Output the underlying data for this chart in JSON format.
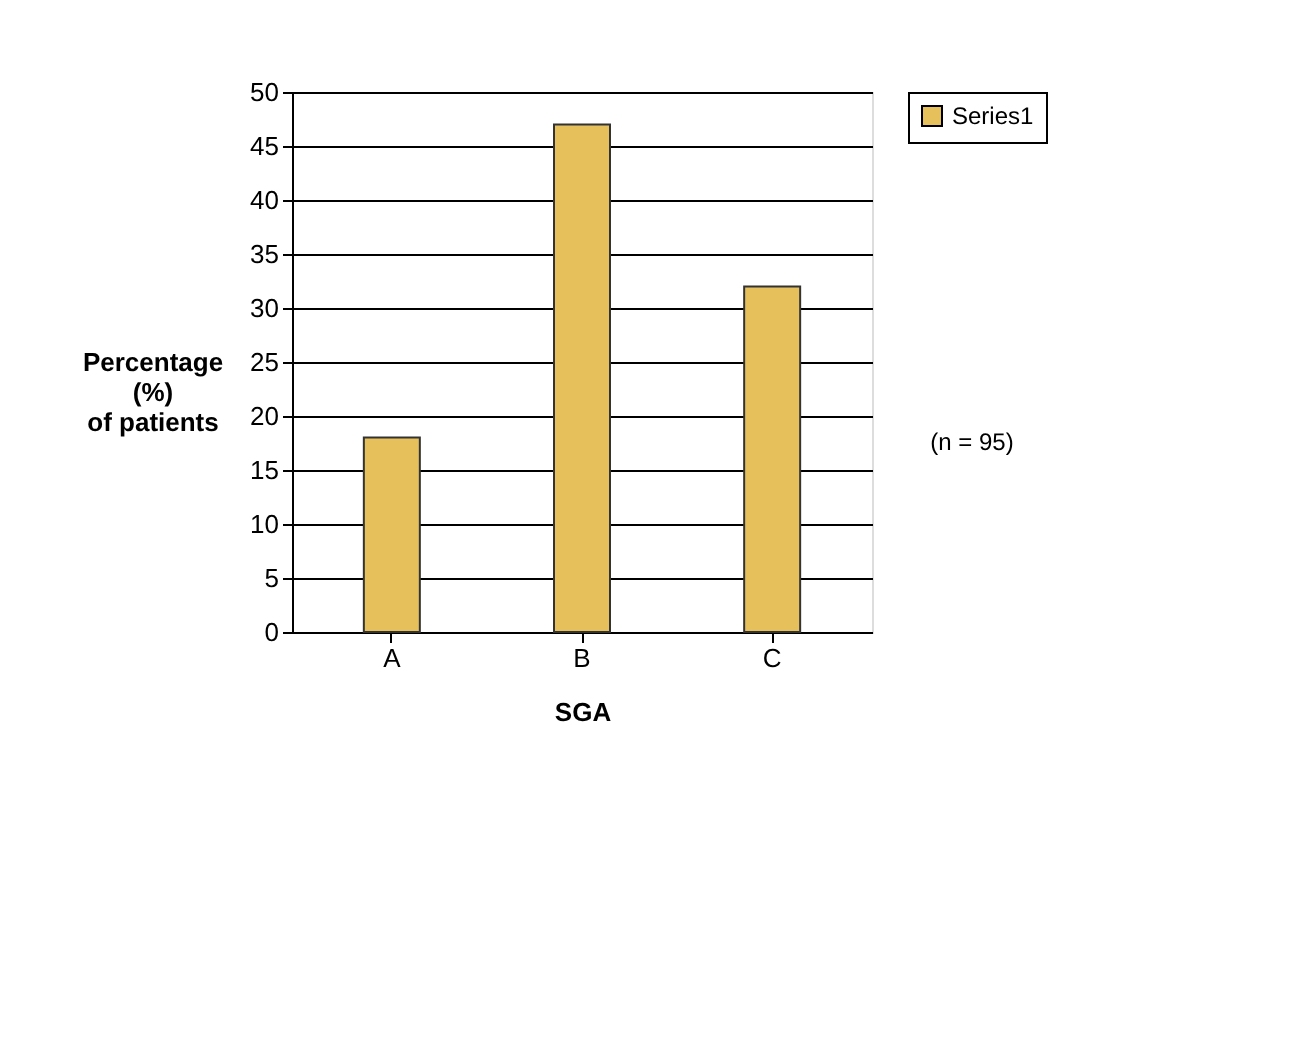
{
  "chart_data": {
    "type": "bar",
    "xlabel": "SGA",
    "ylabel": "Percentage\n(%)\nof patients",
    "categories": [
      "A",
      "B",
      "C"
    ],
    "series": [
      {
        "name": "Series1",
        "color": "#e6c05a",
        "values": [
          18,
          47,
          32
        ]
      }
    ],
    "ylim": [
      0,
      50
    ],
    "yticks": [
      0,
      5,
      10,
      15,
      20,
      25,
      30,
      35,
      40,
      45,
      50
    ],
    "grid": "y",
    "legend": "right",
    "annotations": [
      "(n = 95)"
    ]
  }
}
